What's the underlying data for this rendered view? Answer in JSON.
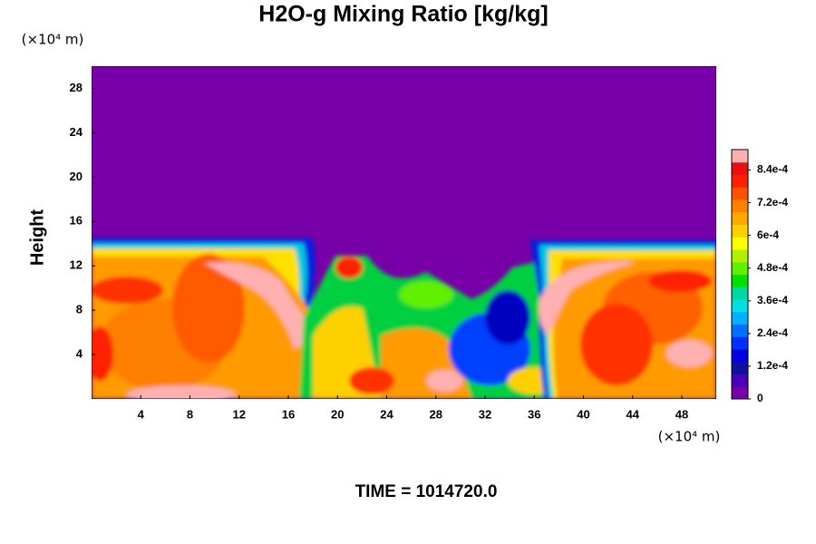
{
  "chart_data": {
    "type": "heatmap",
    "title": "H2O-g Mixing Ratio [kg/kg]",
    "y_label": "Height",
    "x_unit": "(×10⁴ m)",
    "y_unit": "(×10⁴ m)",
    "footer": "TIME = 1014720.0",
    "xlim": [
      0,
      50.8
    ],
    "xticks": [
      4,
      8,
      12,
      16,
      20,
      24,
      28,
      32,
      36,
      40,
      44,
      48
    ],
    "ylim": [
      0,
      30
    ],
    "yticks": [
      4,
      8,
      12,
      16,
      20,
      24,
      28
    ],
    "colorbar_lim": [
      0,
      0.000915
    ],
    "colorbar_ticks": [
      0,
      {
        "value": 0.00012,
        "label": "1.2e-4"
      },
      {
        "value": 0.00024,
        "label": "2.4e-4"
      },
      {
        "value": 0.00036,
        "label": "3.6e-4"
      },
      {
        "value": 0.00048,
        "label": "4.8e-4"
      },
      {
        "value": 0.0006,
        "label": "6e-4"
      },
      {
        "value": 0.00072,
        "label": "7.2e-4"
      },
      {
        "value": 0.00084,
        "label": "8.4e-4"
      }
    ],
    "colors": [
      "#7800a8",
      "#4a00b8",
      "#1010a0",
      "#0000e0",
      "#0030ff",
      "#0070ff",
      "#00b0ff",
      "#00e0e0",
      "#00d8a0",
      "#00e000",
      "#60f000",
      "#b0f000",
      "#ffff00",
      "#ffd000",
      "#ffa800",
      "#ff8000",
      "#ff5000",
      "#ff2000",
      "#e81010",
      "#ffb0b0"
    ]
  }
}
